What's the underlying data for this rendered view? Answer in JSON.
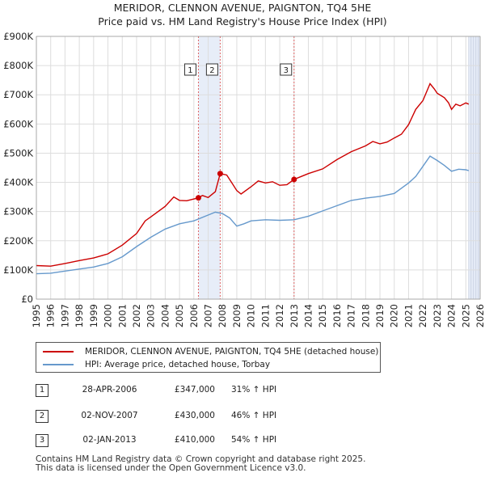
{
  "title_line1": "MERIDOR, CLENNON AVENUE, PAIGNTON, TQ4 5HE",
  "title_line2": "Price paid vs. HM Land Registry's House Price Index (HPI)",
  "chart_data": {
    "type": "line",
    "title": "MERIDOR, CLENNON AVENUE, PAIGNTON, TQ4 5HE — Price paid vs. HM Land Registry's House Price Index (HPI)",
    "xlabel": "",
    "ylabel": "",
    "xlim": [
      1995,
      2026
    ],
    "ylim": [
      0,
      900000
    ],
    "y_ticks": [
      {
        "value": 0,
        "label": "£0"
      },
      {
        "value": 100000,
        "label": "£100K"
      },
      {
        "value": 200000,
        "label": "£200K"
      },
      {
        "value": 300000,
        "label": "£300K"
      },
      {
        "value": 400000,
        "label": "£400K"
      },
      {
        "value": 500000,
        "label": "£500K"
      },
      {
        "value": 600000,
        "label": "£600K"
      },
      {
        "value": 700000,
        "label": "£700K"
      },
      {
        "value": 800000,
        "label": "£800K"
      },
      {
        "value": 900000,
        "label": "£900K"
      }
    ],
    "x_ticks": [
      "1995",
      "1996",
      "1997",
      "1998",
      "1999",
      "2000",
      "2001",
      "2002",
      "2003",
      "2004",
      "2005",
      "2006",
      "2007",
      "2008",
      "2009",
      "2010",
      "2011",
      "2012",
      "2013",
      "2014",
      "2015",
      "2016",
      "2017",
      "2018",
      "2019",
      "2020",
      "2021",
      "2022",
      "2023",
      "2024",
      "2025",
      "2026"
    ],
    "grid": true,
    "colors": {
      "property": "#cc0000",
      "hpi": "#6699cc",
      "shade": "#dde6f5",
      "marker_line": "#e06666"
    },
    "series": [
      {
        "name": "MERIDOR, CLENNON AVENUE, PAIGNTON, TQ4 5HE (detached house)",
        "color": "#cc0000",
        "points": [
          [
            1995.0,
            115000
          ],
          [
            1996.0,
            113000
          ],
          [
            1997.0,
            122000
          ],
          [
            1998.0,
            132000
          ],
          [
            1999.0,
            141000
          ],
          [
            2000.0,
            155000
          ],
          [
            2001.0,
            185000
          ],
          [
            2002.0,
            225000
          ],
          [
            2002.6,
            268000
          ],
          [
            2003.0,
            282000
          ],
          [
            2004.0,
            318000
          ],
          [
            2004.6,
            350000
          ],
          [
            2005.0,
            338000
          ],
          [
            2005.5,
            337000
          ],
          [
            2006.32,
            347000
          ],
          [
            2006.6,
            355000
          ],
          [
            2007.0,
            348000
          ],
          [
            2007.5,
            368000
          ],
          [
            2007.84,
            430000
          ],
          [
            2008.3,
            425000
          ],
          [
            2008.7,
            395000
          ],
          [
            2009.0,
            372000
          ],
          [
            2009.3,
            360000
          ],
          [
            2010.0,
            385000
          ],
          [
            2010.5,
            405000
          ],
          [
            2011.0,
            398000
          ],
          [
            2011.5,
            402000
          ],
          [
            2012.0,
            390000
          ],
          [
            2012.5,
            392000
          ],
          [
            2013.0,
            410000
          ],
          [
            2013.5,
            420000
          ],
          [
            2014.0,
            430000
          ],
          [
            2015.0,
            446000
          ],
          [
            2016.0,
            478000
          ],
          [
            2017.0,
            505000
          ],
          [
            2018.0,
            525000
          ],
          [
            2018.5,
            540000
          ],
          [
            2019.0,
            532000
          ],
          [
            2019.5,
            538000
          ],
          [
            2020.0,
            552000
          ],
          [
            2020.5,
            565000
          ],
          [
            2021.0,
            598000
          ],
          [
            2021.5,
            650000
          ],
          [
            2022.0,
            680000
          ],
          [
            2022.5,
            738000
          ],
          [
            2022.8,
            720000
          ],
          [
            2023.0,
            705000
          ],
          [
            2023.5,
            690000
          ],
          [
            2023.8,
            672000
          ],
          [
            2024.0,
            650000
          ],
          [
            2024.3,
            668000
          ],
          [
            2024.6,
            662000
          ],
          [
            2025.0,
            672000
          ],
          [
            2025.2,
            668000
          ]
        ]
      },
      {
        "name": "HPI: Average price, detached house, Torbay",
        "color": "#6699cc",
        "points": [
          [
            1995.0,
            87000
          ],
          [
            1996.0,
            89000
          ],
          [
            1997.0,
            96000
          ],
          [
            1998.0,
            103000
          ],
          [
            1999.0,
            110000
          ],
          [
            2000.0,
            122000
          ],
          [
            2001.0,
            145000
          ],
          [
            2002.0,
            180000
          ],
          [
            2003.0,
            212000
          ],
          [
            2004.0,
            240000
          ],
          [
            2005.0,
            258000
          ],
          [
            2006.0,
            268000
          ],
          [
            2007.0,
            288000
          ],
          [
            2007.5,
            298000
          ],
          [
            2008.0,
            293000
          ],
          [
            2008.5,
            278000
          ],
          [
            2009.0,
            250000
          ],
          [
            2009.5,
            258000
          ],
          [
            2010.0,
            268000
          ],
          [
            2011.0,
            272000
          ],
          [
            2012.0,
            270000
          ],
          [
            2013.0,
            272000
          ],
          [
            2014.0,
            284000
          ],
          [
            2015.0,
            302000
          ],
          [
            2016.0,
            320000
          ],
          [
            2017.0,
            338000
          ],
          [
            2018.0,
            346000
          ],
          [
            2019.0,
            352000
          ],
          [
            2020.0,
            362000
          ],
          [
            2021.0,
            398000
          ],
          [
            2021.5,
            420000
          ],
          [
            2022.0,
            455000
          ],
          [
            2022.5,
            490000
          ],
          [
            2023.0,
            475000
          ],
          [
            2023.5,
            458000
          ],
          [
            2024.0,
            438000
          ],
          [
            2024.5,
            445000
          ],
          [
            2025.0,
            443000
          ],
          [
            2025.2,
            440000
          ]
        ]
      }
    ],
    "sales": [
      {
        "id": "1",
        "x": 2006.32,
        "value": 347000
      },
      {
        "id": "2",
        "x": 2007.84,
        "value": 430000
      },
      {
        "id": "3",
        "x": 2013.0,
        "value": 410000
      }
    ],
    "shaded_ranges": [
      [
        2006.32,
        2007.84
      ],
      [
        2025.2,
        2026.0
      ]
    ]
  },
  "legend": {
    "property_label": "MERIDOR, CLENNON AVENUE, PAIGNTON, TQ4 5HE (detached house)",
    "hpi_label": "HPI: Average price, detached house, Torbay"
  },
  "transactions": [
    {
      "id": "1",
      "date": "28-APR-2006",
      "price": "£347,000",
      "hpi": "31% ↑ HPI"
    },
    {
      "id": "2",
      "date": "02-NOV-2007",
      "price": "£430,000",
      "hpi": "46% ↑ HPI"
    },
    {
      "id": "3",
      "date": "02-JAN-2013",
      "price": "£410,000",
      "hpi": "54% ↑ HPI"
    }
  ],
  "footer": {
    "line1": "Contains HM Land Registry data © Crown copyright and database right 2025.",
    "line2": "This data is licensed under the Open Government Licence v3.0."
  }
}
